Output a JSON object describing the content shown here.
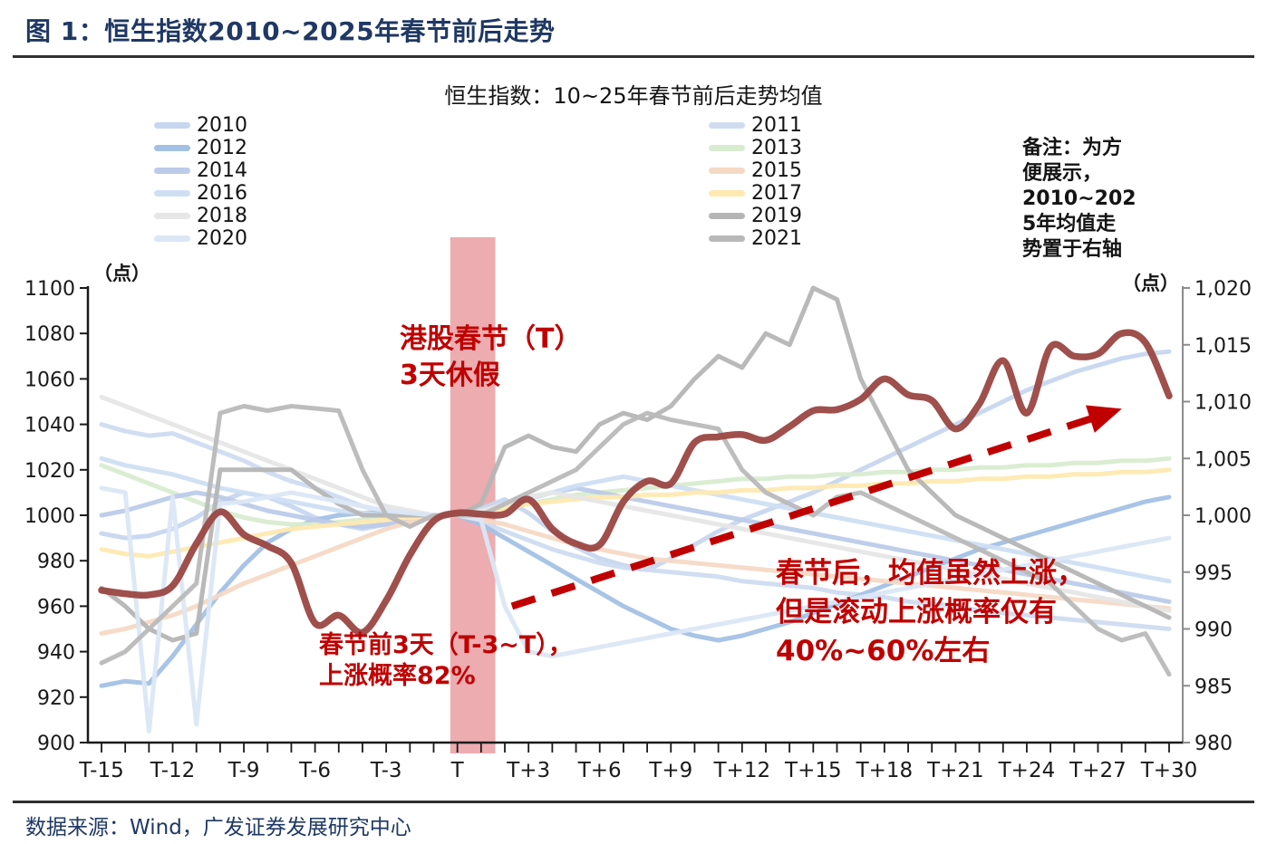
{
  "header": {
    "title": "图 1：恒生指数2010~2025年春节前后走势"
  },
  "footer": {
    "source": "数据来源：Wind，广发证券发展研究中心"
  },
  "note": "备注：为方\n便展示，\n2010~202\n5年均值走\n势置于右轴",
  "annotations": {
    "holiday": "港股春节（T）\n3天休假",
    "pre": "春节前3天（T-3~T），\n上涨概率82%",
    "post": "春节后，均值虽然上涨，\n但是滚动上涨概率仅有\n40%~60%左右"
  },
  "legend": {
    "left_column": [
      "2010",
      "2012",
      "2014",
      "2016",
      "2018",
      "2020"
    ],
    "right_column": [
      "2011",
      "2013",
      "2015",
      "2017",
      "2019",
      "2021"
    ]
  },
  "colors": {
    "title_navy": "#1f3864",
    "annotation_red": "#c00000",
    "mean_line": "#9a4642",
    "band_pink": "#e58c91",
    "axis_black": "#1a1a1a",
    "axis_gray": "#8c8c8c"
  },
  "chart_data": {
    "type": "line",
    "title": "恒生指数：10~25年春节前后走势均值",
    "x_labels": [
      "T-15",
      "T-14",
      "T-13",
      "T-12",
      "T-11",
      "T-10",
      "T-9",
      "T-8",
      "T-7",
      "T-6",
      "T-5",
      "T-4",
      "T-3",
      "T-2",
      "T-1",
      "T",
      "T+1",
      "T+2",
      "T+3",
      "T+4",
      "T+5",
      "T+6",
      "T+7",
      "T+8",
      "T+9",
      "T+10",
      "T+11",
      "T+12",
      "T+13",
      "T+14",
      "T+15",
      "T+16",
      "T+17",
      "T+18",
      "T+19",
      "T+20",
      "T+21",
      "T+22",
      "T+23",
      "T+24",
      "T+25",
      "T+26",
      "T+27",
      "T+28",
      "T+29",
      "T+30"
    ],
    "x_label_every": 3,
    "left_axis": {
      "label": "（点）",
      "min": 900,
      "max": 1100,
      "step": 20,
      "ticks": [
        "1100",
        "1080",
        "1060",
        "1040",
        "1020",
        "1000",
        "980",
        "960",
        "940",
        "920",
        "900"
      ]
    },
    "right_axis": {
      "label": "（点）",
      "min": 980,
      "max": 1020,
      "step": 5,
      "ticks": [
        "1,020",
        "1,015",
        "1,010",
        "1,005",
        "1,000",
        "995",
        "990",
        "985",
        "980"
      ]
    },
    "band": {
      "start_index": 14.7,
      "end_index": 16.6,
      "color": "#e58c91",
      "meaning": "港股春节（T）3天休假"
    },
    "arrow": {
      "from_index": 17.3,
      "from_value": 992.0,
      "to_index": 42.6,
      "to_value": 1009.1,
      "color": "#c00000"
    },
    "series": [
      {
        "name": "2010",
        "axis": "left",
        "color": "#c7d7ef",
        "values": [
          992,
          990,
          991,
          994,
          999,
          1006,
          1010,
          1008,
          1004,
          999,
          996,
          994,
          996,
          998,
          1000,
          1000,
          1003,
          1007,
          1001,
          993,
          986,
          981,
          978,
          976,
          981,
          987,
          993,
          998,
          1002,
          1006,
          1010,
          1015,
          1020,
          1025,
          1030,
          1035,
          1040,
          1045,
          1050,
          1055,
          1059,
          1063,
          1066,
          1069,
          1071,
          1072
        ]
      },
      {
        "name": "2011",
        "axis": "left",
        "color": "#cfdcf0",
        "values": [
          1040,
          1037,
          1035,
          1036,
          1032,
          1028,
          1024,
          1019,
          1015,
          1012,
          1008,
          1004,
          1001,
          1000,
          1000,
          1000,
          997,
          993,
          989,
          985,
          982,
          979,
          977,
          976,
          975,
          974,
          973,
          971,
          970,
          969,
          968,
          966,
          965,
          964,
          962,
          961,
          960,
          958,
          957,
          956,
          955,
          954,
          953,
          952,
          951,
          950
        ]
      },
      {
        "name": "2012",
        "axis": "left",
        "color": "#a3c1e5",
        "values": [
          925,
          927,
          926,
          938,
          952,
          966,
          978,
          988,
          994,
          998,
          1000,
          1001,
          1001,
          1000,
          1000,
          1000,
          996,
          990,
          984,
          978,
          972,
          966,
          960,
          955,
          950,
          947,
          945,
          947,
          950,
          953,
          957,
          961,
          965,
          969,
          973,
          977,
          981,
          985,
          988,
          991,
          994,
          997,
          1000,
          1003,
          1006,
          1008
        ]
      },
      {
        "name": "2013",
        "axis": "left",
        "color": "#d8ecd0",
        "values": [
          1022,
          1018,
          1014,
          1010,
          1006,
          1002,
          999,
          997,
          996,
          996,
          997,
          998,
          999,
          1000,
          1000,
          1000,
          1001,
          1003,
          1005,
          1007,
          1009,
          1010,
          1011,
          1012,
          1013,
          1014,
          1015,
          1016,
          1016,
          1017,
          1017,
          1018,
          1018,
          1019,
          1019,
          1020,
          1020,
          1021,
          1021,
          1022,
          1022,
          1023,
          1023,
          1024,
          1024,
          1025
        ]
      },
      {
        "name": "2014",
        "axis": "left",
        "color": "#bccbe9",
        "values": [
          1000,
          1002,
          1005,
          1008,
          1010,
          1008,
          1005,
          1002,
          1000,
          998,
          996,
          995,
          996,
          998,
          999,
          1000,
          1002,
          1005,
          1008,
          1010,
          1012,
          1010,
          1008,
          1006,
          1004,
          1002,
          1000,
          998,
          996,
          994,
          992,
          990,
          988,
          986,
          984,
          982,
          980,
          978,
          976,
          974,
          972,
          970,
          968,
          966,
          964,
          962
        ]
      },
      {
        "name": "2015",
        "axis": "left",
        "color": "#f6d9c5",
        "values": [
          948,
          950,
          953,
          956,
          960,
          965,
          970,
          974,
          978,
          982,
          986,
          990,
          994,
          997,
          999,
          1000,
          998,
          996,
          993,
          990,
          987,
          985,
          983,
          981,
          980,
          979,
          978,
          977,
          976,
          975,
          974,
          973,
          972,
          971,
          970,
          969,
          968,
          967,
          966,
          965,
          964,
          963,
          962,
          961,
          960,
          959
        ]
      },
      {
        "name": "2016",
        "axis": "left",
        "color": "#cfdff3",
        "values": [
          1025,
          1022,
          1020,
          1018,
          1015,
          1012,
          1010,
          1008,
          1006,
          1004,
          1002,
          1001,
          1000,
          1000,
          1000,
          1000,
          1002,
          1004,
          1007,
          1010,
          1013,
          1015,
          1017,
          1015,
          1013,
          1011,
          1009,
          1007,
          1005,
          1003,
          1001,
          999,
          997,
          995,
          993,
          991,
          989,
          987,
          985,
          983,
          981,
          979,
          977,
          975,
          973,
          971
        ]
      },
      {
        "name": "2017",
        "axis": "left",
        "color": "#fee9b0",
        "values": [
          985,
          983,
          982,
          984,
          986,
          988,
          990,
          992,
          994,
          995,
          996,
          997,
          998,
          999,
          1000,
          1000,
          1001,
          1003,
          1005,
          1006,
          1007,
          1008,
          1008,
          1009,
          1009,
          1010,
          1010,
          1011,
          1011,
          1012,
          1012,
          1013,
          1013,
          1014,
          1014,
          1015,
          1015,
          1016,
          1016,
          1017,
          1017,
          1018,
          1018,
          1019,
          1019,
          1020
        ]
      },
      {
        "name": "2018",
        "axis": "left",
        "color": "#e6e6e6",
        "values": [
          1052,
          1048,
          1044,
          1040,
          1036,
          1032,
          1028,
          1024,
          1020,
          1016,
          1012,
          1008,
          1004,
          1002,
          1000,
          1000,
          1002,
          1005,
          1008,
          1010,
          1008,
          1006,
          1004,
          1002,
          1000,
          998,
          996,
          994,
          992,
          990,
          988,
          986,
          984,
          982,
          980,
          978,
          976,
          974,
          972,
          970,
          968,
          966,
          964,
          962,
          960,
          958
        ]
      },
      {
        "name": "2019",
        "axis": "left",
        "color": "#b5b5b5",
        "values": [
          968,
          960,
          950,
          945,
          948,
          1020,
          1020,
          1020,
          1020,
          1012,
          1005,
          1000,
          1000,
          1000,
          1000,
          1000,
          1005,
          1030,
          1035,
          1030,
          1028,
          1040,
          1045,
          1042,
          1048,
          1060,
          1070,
          1065,
          1080,
          1075,
          1100,
          1095,
          1060,
          1040,
          1020,
          1010,
          1000,
          995,
          990,
          985,
          980,
          975,
          970,
          965,
          960,
          955
        ]
      },
      {
        "name": "2020",
        "axis": "left",
        "color": "#dbe7f5",
        "values": [
          1012,
          1010,
          905,
          1008,
          908,
          1005,
          1006,
          1008,
          1010,
          1008,
          1006,
          1004,
          1002,
          1001,
          1000,
          1000,
          998,
          960,
          940,
          938,
          940,
          942,
          944,
          946,
          948,
          950,
          952,
          954,
          956,
          958,
          960,
          962,
          964,
          966,
          968,
          970,
          972,
          974,
          976,
          978,
          980,
          982,
          984,
          986,
          988,
          990
        ]
      },
      {
        "name": "2021",
        "axis": "left",
        "color": "#b9b9b9",
        "values": [
          935,
          940,
          950,
          960,
          970,
          1045,
          1048,
          1046,
          1048,
          1047,
          1046,
          1020,
          1000,
          995,
          1000,
          1000,
          1000,
          1005,
          1010,
          1015,
          1020,
          1030,
          1040,
          1045,
          1042,
          1040,
          1038,
          1020,
          1010,
          1005,
          1000,
          1008,
          1010,
          1005,
          1000,
          995,
          990,
          985,
          980,
          975,
          970,
          960,
          950,
          945,
          948,
          930
        ]
      },
      {
        "name": "2010~2025均值",
        "axis": "right",
        "color": "#9a4642",
        "width": 7.5,
        "smooth": true,
        "values": [
          993.4,
          993.1,
          993.0,
          993.8,
          997.5,
          1000.3,
          998.3,
          997.3,
          995.8,
          990.5,
          991.2,
          989.7,
          992.5,
          996.5,
          999.5,
          1000.2,
          1000.1,
          1000.1,
          1001.4,
          998.8,
          997.5,
          997.4,
          1001.2,
          1003.0,
          1002.8,
          1006.4,
          1006.9,
          1007.1,
          1006.6,
          1007.8,
          1009.2,
          1009.3,
          1010.2,
          1012.0,
          1010.6,
          1010.1,
          1007.6,
          1009.8,
          1013.6,
          1009.0,
          1014.8,
          1014.0,
          1014.2,
          1016.0,
          1015.2,
          1010.5
        ]
      }
    ]
  }
}
